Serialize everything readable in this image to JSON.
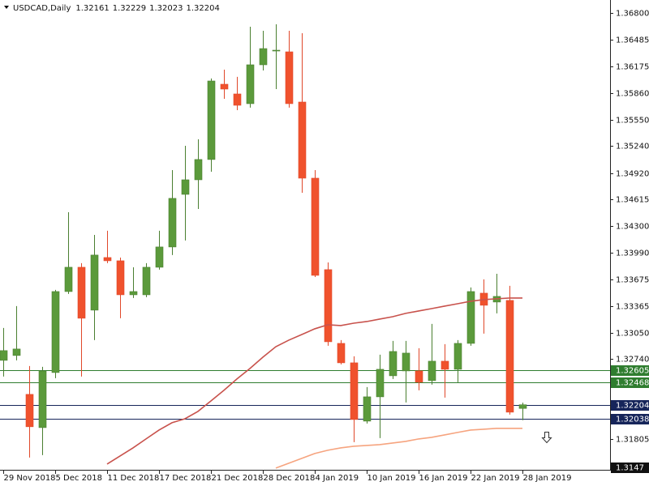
{
  "chart_data": {
    "type": "candlestick",
    "title": "USDCAD,Daily",
    "categories": [
      "29 Nov 2018",
      null,
      null,
      null,
      "5 Dec 2018",
      null,
      null,
      null,
      "11 Dec 2018",
      null,
      null,
      null,
      "17 Dec 2018",
      null,
      null,
      null,
      "21 Dec 2018",
      null,
      null,
      null,
      "28 Dec 2018",
      null,
      null,
      null,
      "4 Jan 2019",
      null,
      null,
      null,
      "10 Jan 2019",
      null,
      null,
      null,
      "16 Jan 2019",
      null,
      null,
      null,
      "22 Jan 2019",
      null,
      null,
      null,
      "28 Jan 2019"
    ],
    "open": [
      1.32725,
      1.32782,
      1.32326,
      1.31936,
      1.32582,
      1.33532,
      1.33817,
      1.33314,
      1.33931,
      1.33893,
      1.33494,
      1.33494,
      1.33817,
      1.34055,
      1.34672,
      1.34843,
      1.35081,
      1.35964,
      1.3585,
      1.35736,
      1.36192,
      1.36363,
      1.36344,
      1.35755,
      1.34862,
      1.33789,
      1.32924,
      1.32696,
      1.32012,
      1.32297,
      1.32544,
      1.32601,
      1.32601,
      1.32487,
      1.32715,
      1.3262,
      1.32924,
      1.33513,
      1.33409,
      1.33428,
      1.32161
    ],
    "high": [
      1.33105,
      1.33361,
      1.32658,
      1.32649,
      1.33551,
      1.34463,
      1.33865,
      1.34197,
      1.34245,
      1.33931,
      1.33817,
      1.33865,
      1.34245,
      1.34957,
      1.35242,
      1.35318,
      1.36031,
      1.36135,
      1.3605,
      1.36638,
      1.36591,
      1.36667,
      1.36591,
      1.36563,
      1.34957,
      1.33874,
      1.32962,
      1.32772,
      1.32411,
      1.32791,
      1.32953,
      1.32953,
      1.32867,
      1.33152,
      1.32915,
      1.32962,
      1.3358,
      1.33675,
      1.33741,
      1.33599,
      1.32229
    ],
    "low": [
      1.32535,
      1.32725,
      1.31585,
      1.31613,
      1.32516,
      1.33504,
      1.32535,
      1.32962,
      1.33865,
      1.33219,
      1.33456,
      1.33466,
      1.33789,
      1.3396,
      1.34131,
      1.34501,
      1.34938,
      1.35793,
      1.3566,
      1.35689,
      1.36125,
      1.35907,
      1.35689,
      1.34691,
      1.33703,
      1.32896,
      1.32677,
      1.31765,
      1.31984,
      1.31813,
      1.32506,
      1.32231,
      1.32373,
      1.3244,
      1.32288,
      1.32468,
      1.32896,
      1.33038,
      1.33276,
      1.32088,
      1.32023
    ],
    "close": [
      1.32839,
      1.32858,
      1.31946,
      1.32601,
      1.33532,
      1.33817,
      1.33219,
      1.3396,
      1.33893,
      1.33494,
      1.33532,
      1.33817,
      1.34055,
      1.34625,
      1.34843,
      1.35081,
      1.36002,
      1.35907,
      1.35717,
      1.36192,
      1.36382,
      1.36363,
      1.35736,
      1.34862,
      1.33722,
      1.32943,
      1.32696,
      1.32031,
      1.32297,
      1.3262,
      1.32829,
      1.3281,
      1.32468,
      1.32715,
      1.3262,
      1.32924,
      1.33532,
      1.33371,
      1.33475,
      1.32117,
      1.32204
    ],
    "up_color": "#5b9a3b",
    "down_color": "#f0522d",
    "moving_averages": [
      {
        "color": "#c8524c",
        "values": [
          null,
          null,
          null,
          null,
          null,
          null,
          null,
          null,
          1.31508,
          1.31603,
          1.31698,
          1.31803,
          1.31907,
          1.31993,
          1.3204,
          1.32126,
          1.32249,
          1.32373,
          1.32506,
          1.32629,
          1.32762,
          1.32885,
          1.32962,
          1.33028,
          1.33095,
          1.33142,
          1.33133,
          1.33161,
          1.3318,
          1.33209,
          1.33237,
          1.33276,
          1.33304,
          1.33332,
          1.33361,
          1.33389,
          1.33418,
          1.33437,
          1.33447,
          1.33456,
          1.33456
        ]
      },
      {
        "color": "#f6a47f",
        "values": [
          null,
          null,
          null,
          null,
          null,
          null,
          null,
          null,
          null,
          null,
          null,
          null,
          null,
          null,
          null,
          null,
          null,
          null,
          null,
          null,
          null,
          1.31461,
          1.31518,
          1.31575,
          1.31632,
          1.3167,
          1.31698,
          1.31717,
          1.31727,
          1.31736,
          1.31755,
          1.31774,
          1.31803,
          1.31822,
          1.3185,
          1.31879,
          1.31907,
          1.31917,
          1.31927,
          1.31927,
          1.31927
        ]
      }
    ],
    "levels": [
      {
        "value": 1.32605,
        "color": "#2f7d2f",
        "line": true
      },
      {
        "value": 1.32468,
        "color": "#2f7d2f",
        "line": true
      },
      {
        "value": 1.32204,
        "color": "#16255a",
        "line": true
      },
      {
        "value": 1.32038,
        "color": "#16255a",
        "line": true
      },
      {
        "value": 1.3147,
        "color": "#111111",
        "line": false
      }
    ],
    "ylim": [
      1.31441,
      1.36952
    ],
    "yticks": [
      {
        "value": 1.368,
        "label": "1.36800"
      },
      1.36485,
      1.36175,
      {
        "value": 1.3586,
        "label": "1.35860"
      },
      {
        "value": 1.3555,
        "label": "1.35550"
      },
      {
        "value": 1.3524,
        "label": "1.35240"
      },
      {
        "value": 1.3492,
        "label": "1.34920"
      },
      1.34615,
      {
        "value": 1.343,
        "label": "1.34300"
      },
      {
        "value": 1.3399,
        "label": "1.33990"
      },
      1.33675,
      1.33365,
      {
        "value": 1.3305,
        "label": "1.33050"
      },
      {
        "value": 1.3274,
        "label": "1.32740"
      },
      1.31805
    ]
  }
}
